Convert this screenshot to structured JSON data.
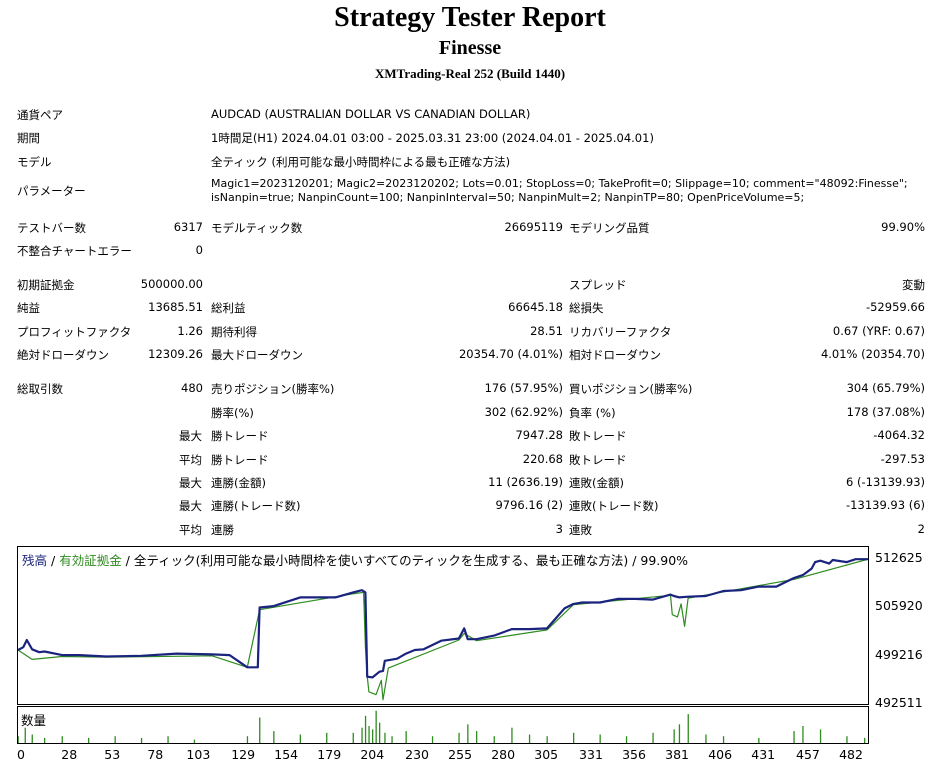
{
  "header": {
    "title": "Strategy Tester Report",
    "subtitle": "Finesse",
    "server": "XMTrading-Real 252 (Build 1440)"
  },
  "info": {
    "symbol_label": "通貨ペア",
    "symbol_value": "AUDCAD (AUSTRALIAN DOLLAR VS CANADIAN DOLLAR)",
    "period_label": "期間",
    "period_value": "1時間足(H1) 2024.04.01 03:00 - 2025.03.31 23:00 (2024.04.01 - 2025.04.01)",
    "model_label": "モデル",
    "model_value": "全ティック (利用可能な最小時間枠による最も正確な方法)",
    "params_label": "パラメーター",
    "params_line1": "Magic1=2023120201; Magic2=2023120202; Lots=0.01; StopLoss=0; TakeProfit=0; Slippage=10; comment=\"48092:Finesse\";",
    "params_line2": "isNanpin=true; NanpinCount=100; NanpinInterval=50; NanpinMult=2; NanpinTP=80; OpenPriceVolume=5;"
  },
  "stats": {
    "bars_label": "テストバー数",
    "bars_value": "6317",
    "ticks_label": "モデルティック数",
    "ticks_value": "26695119",
    "quality_label": "モデリング品質",
    "quality_value": "99.90%",
    "mismatch_label": "不整合チャートエラー",
    "mismatch_value": "0",
    "deposit_label": "初期証拠金",
    "deposit_value": "500000.00",
    "spread_label": "スプレッド",
    "spread_value": "変動",
    "net_label": "純益",
    "net_value": "13685.51",
    "gross_profit_label": "総利益",
    "gross_profit_value": "66645.18",
    "gross_loss_label": "総損失",
    "gross_loss_value": "-52959.66",
    "pf_label": "プロフィットファクタ",
    "pf_value": "1.26",
    "expected_label": "期待利得",
    "expected_value": "28.51",
    "recovery_label": "リカバリーファクタ",
    "recovery_value": "0.67 (YRF: 0.67)",
    "abs_dd_label": "絶対ドローダウン",
    "abs_dd_value": "12309.26",
    "max_dd_label": "最大ドローダウン",
    "max_dd_value": "20354.70 (4.01%)",
    "rel_dd_label": "相対ドローダウン",
    "rel_dd_value": "4.01% (20354.70)",
    "trades_label": "総取引数",
    "trades_value": "480",
    "short_label": "売りポジション(勝率%)",
    "short_value": "176 (57.95%)",
    "long_label": "買いポジション(勝率%)",
    "long_value": "304 (65.79%)",
    "win_label": "勝率(%)",
    "win_value": "302 (62.92%)",
    "loss_label": "負率 (%)",
    "loss_value": "178 (37.08%)",
    "max_prefix": "最大",
    "avg_prefix": "平均",
    "largest_win_label": "勝トレード",
    "largest_win_value": "7947.28",
    "largest_loss_label": "敗トレード",
    "largest_loss_value": "-4064.32",
    "avg_win_label": "勝トレード",
    "avg_win_value": "220.68",
    "avg_loss_label": "敗トレード",
    "avg_loss_value": "-297.53",
    "consec_win_amt_label": "連勝(金額)",
    "consec_win_amt_value": "11 (2636.19)",
    "consec_loss_amt_label": "連敗(金額)",
    "consec_loss_amt_value": "6 (-13139.93)",
    "consec_win_cnt_label": "連勝(トレード数)",
    "consec_win_cnt_value": "9796.16 (2)",
    "consec_loss_cnt_label": "連敗(トレード数)",
    "consec_loss_cnt_value": "-13139.93 (6)",
    "avg_consec_win_label": "連勝",
    "avg_consec_win_value": "3",
    "avg_consec_loss_label": "連敗",
    "avg_consec_loss_value": "2"
  },
  "legend": {
    "balance": "残高",
    "sep1": " / ",
    "equity": "有効証拠金",
    "rest": " / 全ティック(利用可能な最小時間枠を使いすべてのティックを生成する、最も正確な方法) / 99.90%"
  },
  "volume_label": "数量",
  "colors": {
    "balance": "#1a237e",
    "equity": "#2e8b1f",
    "volume": "#2e8b1f"
  },
  "chart_data": {
    "type": "line",
    "y_ticks": [
      "512625",
      "505920",
      "499216",
      "492511"
    ],
    "x_ticks": [
      "0",
      "28",
      "53",
      "78",
      "103",
      "129",
      "154",
      "179",
      "204",
      "230",
      "255",
      "280",
      "305",
      "331",
      "356",
      "381",
      "406",
      "431",
      "457",
      "482"
    ],
    "ylim": [
      492511,
      514300
    ],
    "xlim": [
      0,
      482
    ],
    "series": [
      {
        "name": "残高",
        "x": [
          0,
          3,
          5,
          8,
          12,
          15,
          25,
          35,
          50,
          70,
          90,
          110,
          120,
          130,
          136,
          137,
          145,
          160,
          170,
          180,
          190,
          195,
          197,
          198,
          201,
          205,
          207,
          208,
          215,
          220,
          225,
          230,
          240,
          250,
          253,
          255,
          260,
          270,
          280,
          290,
          300,
          310,
          315,
          320,
          330,
          340,
          350,
          360,
          370,
          372,
          375,
          380,
          390,
          400,
          410,
          420,
          430,
          440,
          445,
          450,
          452,
          455,
          460,
          462,
          470,
          475,
          482
        ],
        "y": [
          500000,
          500400,
          501400,
          500100,
          499700,
          499800,
          499300,
          499300,
          499100,
          499200,
          499500,
          499400,
          499300,
          497600,
          497600,
          505900,
          506100,
          507300,
          507300,
          507300,
          508000,
          508300,
          508000,
          496300,
          496200,
          497000,
          497100,
          498500,
          498800,
          499500,
          500000,
          500100,
          501300,
          501600,
          503000,
          501500,
          501500,
          502000,
          502900,
          502900,
          503000,
          505800,
          506400,
          506600,
          506600,
          507100,
          507100,
          507000,
          507700,
          507500,
          507300,
          507400,
          507500,
          508200,
          508300,
          508800,
          508800,
          510000,
          510400,
          511300,
          512200,
          512400,
          512000,
          512500,
          512200,
          512600,
          512600
        ]
      },
      {
        "name": "有効証拠金",
        "x": [
          0,
          8,
          25,
          50,
          110,
          130,
          137,
          190,
          196,
          197,
          198,
          199,
          203,
          206,
          207,
          210,
          250,
          253,
          260,
          300,
          315,
          370,
          371,
          374,
          376,
          378,
          380,
          440,
          482
        ],
        "y": [
          500000,
          498700,
          499100,
          499000,
          499200,
          497600,
          505600,
          507800,
          508000,
          500400,
          496400,
          494200,
          493800,
          495800,
          493100,
          497500,
          501400,
          502300,
          501300,
          502800,
          506300,
          507600,
          504900,
          504600,
          506400,
          503300,
          507200,
          509800,
          512600
        ]
      }
    ],
    "volume": {
      "x": [
        0,
        4,
        8,
        15,
        25,
        40,
        55,
        70,
        85,
        100,
        130,
        137,
        145,
        160,
        175,
        190,
        195,
        197,
        199,
        201,
        203,
        205,
        208,
        212,
        220,
        235,
        250,
        255,
        260,
        270,
        280,
        290,
        300,
        315,
        330,
        345,
        360,
        372,
        375,
        380,
        390,
        400,
        420,
        440,
        445,
        455,
        470,
        480
      ],
      "values": [
        0.2,
        0.45,
        0.25,
        0.15,
        0.2,
        0.15,
        0.2,
        0.15,
        0.2,
        0.1,
        0.2,
        0.75,
        0.35,
        0.25,
        0.3,
        0.3,
        0.45,
        0.8,
        0.5,
        0.4,
        0.95,
        0.6,
        0.3,
        0.2,
        0.35,
        0.2,
        0.3,
        0.55,
        0.35,
        0.2,
        0.45,
        0.25,
        0.2,
        0.3,
        0.25,
        0.2,
        0.3,
        0.4,
        0.55,
        0.85,
        0.25,
        0.2,
        0.15,
        0.35,
        0.5,
        0.4,
        0.2,
        0.15
      ]
    }
  }
}
